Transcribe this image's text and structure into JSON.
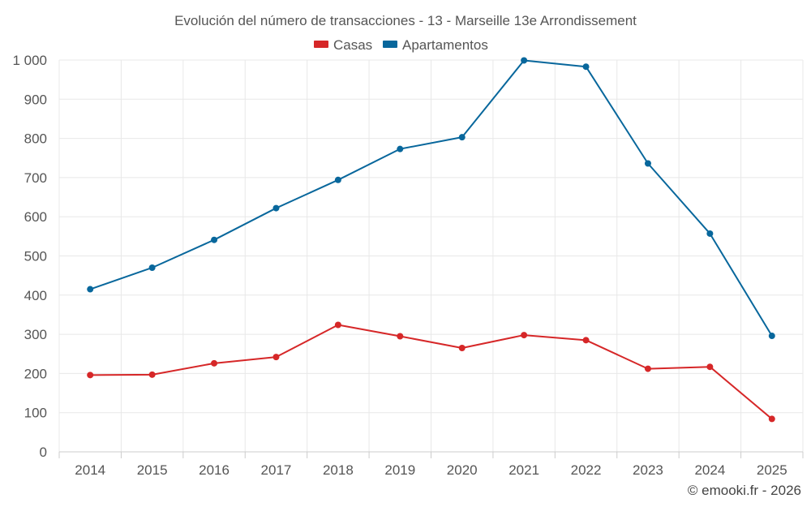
{
  "chart_data": {
    "type": "line",
    "title": "Evolución del número de transacciones - 13 - Marseille 13e Arrondissement",
    "categories": [
      "2014",
      "2015",
      "2016",
      "2017",
      "2018",
      "2019",
      "2020",
      "2021",
      "2022",
      "2023",
      "2024",
      "2025"
    ],
    "series": [
      {
        "name": "Casas",
        "color": "#d62728",
        "values": [
          196,
          197,
          226,
          242,
          324,
          295,
          265,
          298,
          285,
          212,
          217,
          84
        ]
      },
      {
        "name": "Apartamentos",
        "color": "#08679c",
        "values": [
          415,
          470,
          541,
          622,
          694,
          773,
          803,
          999,
          983,
          736,
          557,
          296
        ]
      }
    ],
    "ylim": [
      0,
      1000
    ],
    "yticks": [
      0,
      100,
      200,
      300,
      400,
      500,
      600,
      700,
      800,
      900,
      1000
    ],
    "ytick_labels": [
      "0",
      "100",
      "200",
      "300",
      "400",
      "500",
      "600",
      "700",
      "800",
      "900",
      "1 000"
    ],
    "xlabel": "",
    "ylabel": "",
    "grid": true,
    "legend_position": "top-center",
    "credit": "© emooki.fr - 2026"
  }
}
